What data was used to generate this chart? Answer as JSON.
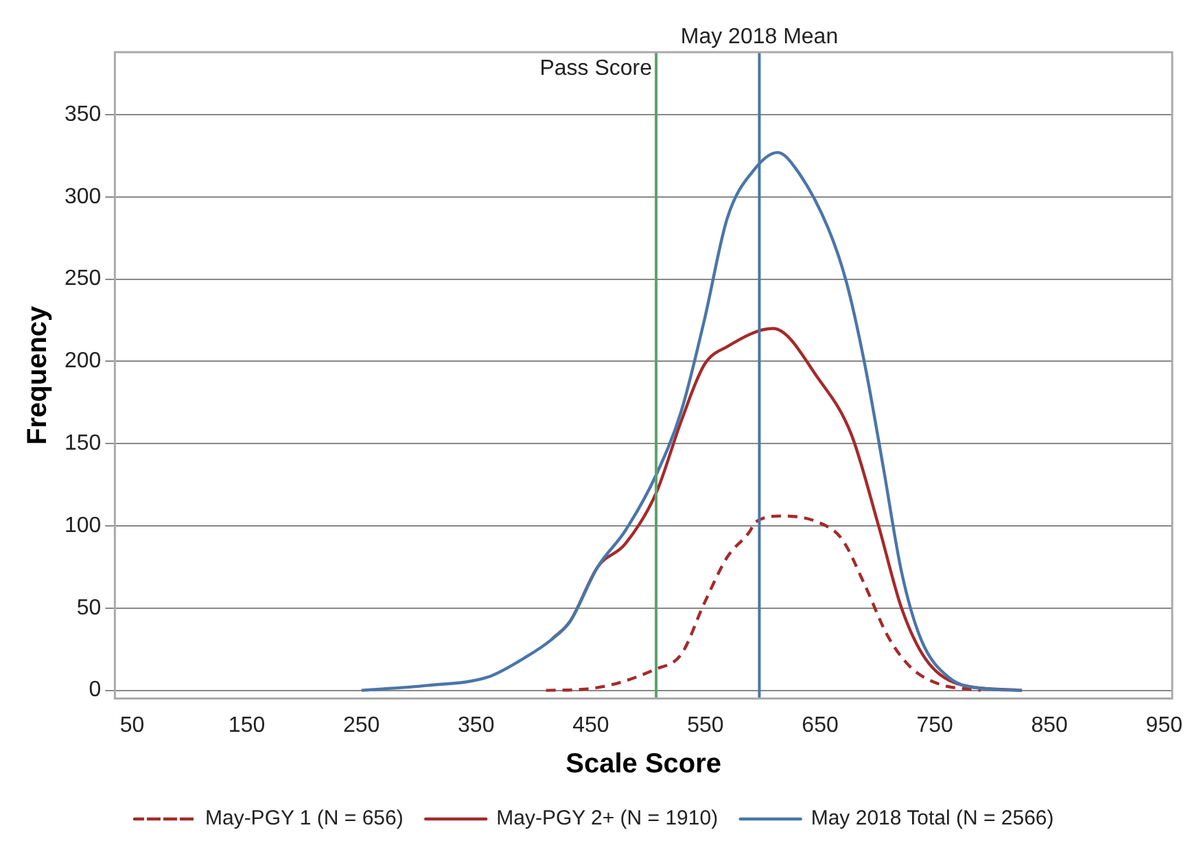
{
  "chart_data": {
    "type": "line",
    "xlabel": "Scale Score",
    "ylabel": "Frequency",
    "xlim": [
      35,
      957
    ],
    "xticks": [
      50,
      150,
      250,
      350,
      450,
      550,
      650,
      750,
      850,
      950
    ],
    "ylim": [
      -5,
      388
    ],
    "yticks": [
      0,
      50,
      100,
      150,
      200,
      250,
      300,
      350
    ],
    "grid": "y",
    "legend": "bottom",
    "marker": "none",
    "series": [
      {
        "name": "May-PGY 1 (N = 656)",
        "color": "#a52a2a",
        "line_style": "dashed",
        "x": [
          411,
          449,
          507,
          529,
          549,
          569,
          589,
          593,
          617,
          649,
          669,
          689,
          709,
          729,
          753,
          790
        ],
        "values": [
          0,
          1,
          13,
          22,
          53,
          81,
          97,
          102,
          106,
          102,
          92,
          64,
          33,
          14,
          4,
          0
        ]
      },
      {
        "name": "May-PGY 2+ (N = 1910)",
        "color": "#a52a2a",
        "line_style": "solid",
        "x": [
          416,
          432,
          456,
          480,
          507,
          529,
          549,
          569,
          609,
          649,
          677,
          701,
          721,
          742,
          770,
          826
        ],
        "values": [
          31,
          42,
          75,
          89,
          120,
          164,
          198,
          209,
          220,
          189,
          156,
          100,
          50,
          19,
          4,
          0
        ]
      },
      {
        "name": "May 2018 Total (N = 2566)",
        "color": "#4a76a8",
        "line_style": "solid",
        "x": [
          250,
          308,
          360,
          388,
          416,
          432,
          456,
          480,
          507,
          529,
          549,
          569,
          593,
          613,
          629,
          657,
          673,
          689,
          705,
          721,
          738,
          762,
          794,
          826
        ],
        "values": [
          0,
          3,
          8,
          18,
          31,
          42,
          75,
          97,
          131,
          170,
          225,
          287,
          317,
          327,
          317,
          281,
          248,
          198,
          136,
          72,
          31,
          8,
          1,
          0
        ]
      }
    ],
    "ref_lines": [
      {
        "axis": "x",
        "value": 507,
        "label": "Pass Score",
        "color": "#5aa36a"
      },
      {
        "axis": "x",
        "value": 597,
        "label": "May 2018 Mean",
        "color": "#4a76a8"
      }
    ]
  }
}
